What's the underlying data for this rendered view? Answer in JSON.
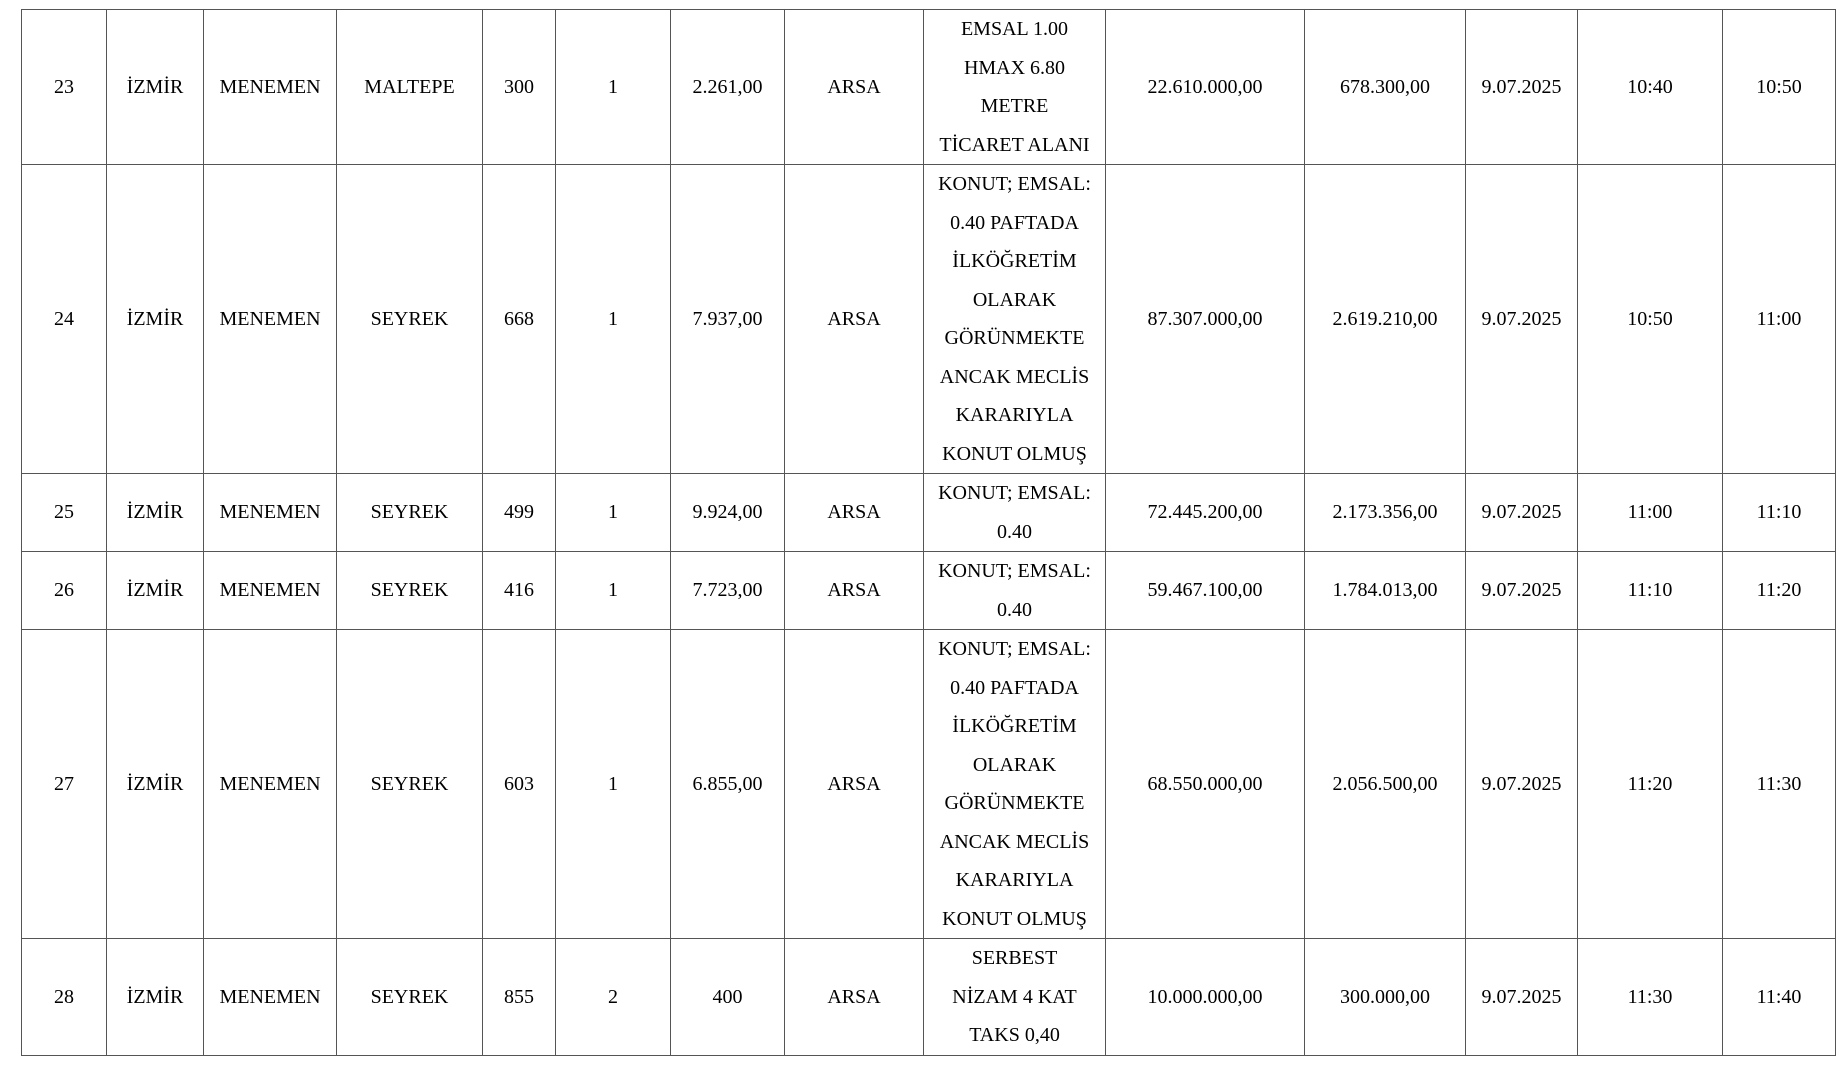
{
  "rows": [
    {
      "no": "23",
      "il": "İZMİR",
      "ilce": "MENEMEN",
      "mahalle": "MALTEPE",
      "ada": "300",
      "parsel": "1",
      "alan": "2.261,00",
      "nitelik": "ARSA",
      "imar": [
        "EMSAL 1.00",
        "HMAX 6.80",
        "METRE",
        "TİCARET ALANI"
      ],
      "bedel": "22.610.000,00",
      "teminat": "678.300,00",
      "tarih": "9.07.2025",
      "saat1": "10:40",
      "saat2": "10:50"
    },
    {
      "no": "24",
      "il": "İZMİR",
      "ilce": "MENEMEN",
      "mahalle": "SEYREK",
      "ada": "668",
      "parsel": "1",
      "alan": "7.937,00",
      "nitelik": "ARSA",
      "imar": [
        "KONUT; EMSAL:",
        "0.40 PAFTADA",
        "İLKÖĞRETİM",
        "OLARAK",
        "GÖRÜNMEKTE",
        "ANCAK MECLİS",
        "KARARIYLA",
        "KONUT OLMUŞ"
      ],
      "bedel": "87.307.000,00",
      "teminat": "2.619.210,00",
      "tarih": "9.07.2025",
      "saat1": "10:50",
      "saat2": "11:00"
    },
    {
      "no": "25",
      "il": "İZMİR",
      "ilce": "MENEMEN",
      "mahalle": "SEYREK",
      "ada": "499",
      "parsel": "1",
      "alan": "9.924,00",
      "nitelik": "ARSA",
      "imar": [
        "KONUT; EMSAL:",
        "0.40"
      ],
      "bedel": "72.445.200,00",
      "teminat": "2.173.356,00",
      "tarih": "9.07.2025",
      "saat1": "11:00",
      "saat2": "11:10"
    },
    {
      "no": "26",
      "il": "İZMİR",
      "ilce": "MENEMEN",
      "mahalle": "SEYREK",
      "ada": "416",
      "parsel": "1",
      "alan": "7.723,00",
      "nitelik": "ARSA",
      "imar": [
        "KONUT; EMSAL:",
        "0.40"
      ],
      "bedel": "59.467.100,00",
      "teminat": "1.784.013,00",
      "tarih": "9.07.2025",
      "saat1": "11:10",
      "saat2": "11:20"
    },
    {
      "no": "27",
      "il": "İZMİR",
      "ilce": "MENEMEN",
      "mahalle": "SEYREK",
      "ada": "603",
      "parsel": "1",
      "alan": "6.855,00",
      "nitelik": "ARSA",
      "imar": [
        "KONUT; EMSAL:",
        "0.40 PAFTADA",
        "İLKÖĞRETİM",
        "OLARAK",
        "GÖRÜNMEKTE",
        "ANCAK MECLİS",
        "KARARIYLA",
        "KONUT OLMUŞ"
      ],
      "bedel": "68.550.000,00",
      "teminat": "2.056.500,00",
      "tarih": "9.07.2025",
      "saat1": "11:20",
      "saat2": "11:30"
    },
    {
      "no": "28",
      "il": "İZMİR",
      "ilce": "MENEMEN",
      "mahalle": "SEYREK",
      "ada": "855",
      "parsel": "2",
      "alan": "400",
      "nitelik": "ARSA",
      "imar": [
        "SERBEST",
        "NİZAM 4 KAT",
        "TAKS 0,40"
      ],
      "bedel": "10.000.000,00",
      "teminat": "300.000,00",
      "tarih": "9.07.2025",
      "saat1": "11:30",
      "saat2": "11:40"
    }
  ]
}
